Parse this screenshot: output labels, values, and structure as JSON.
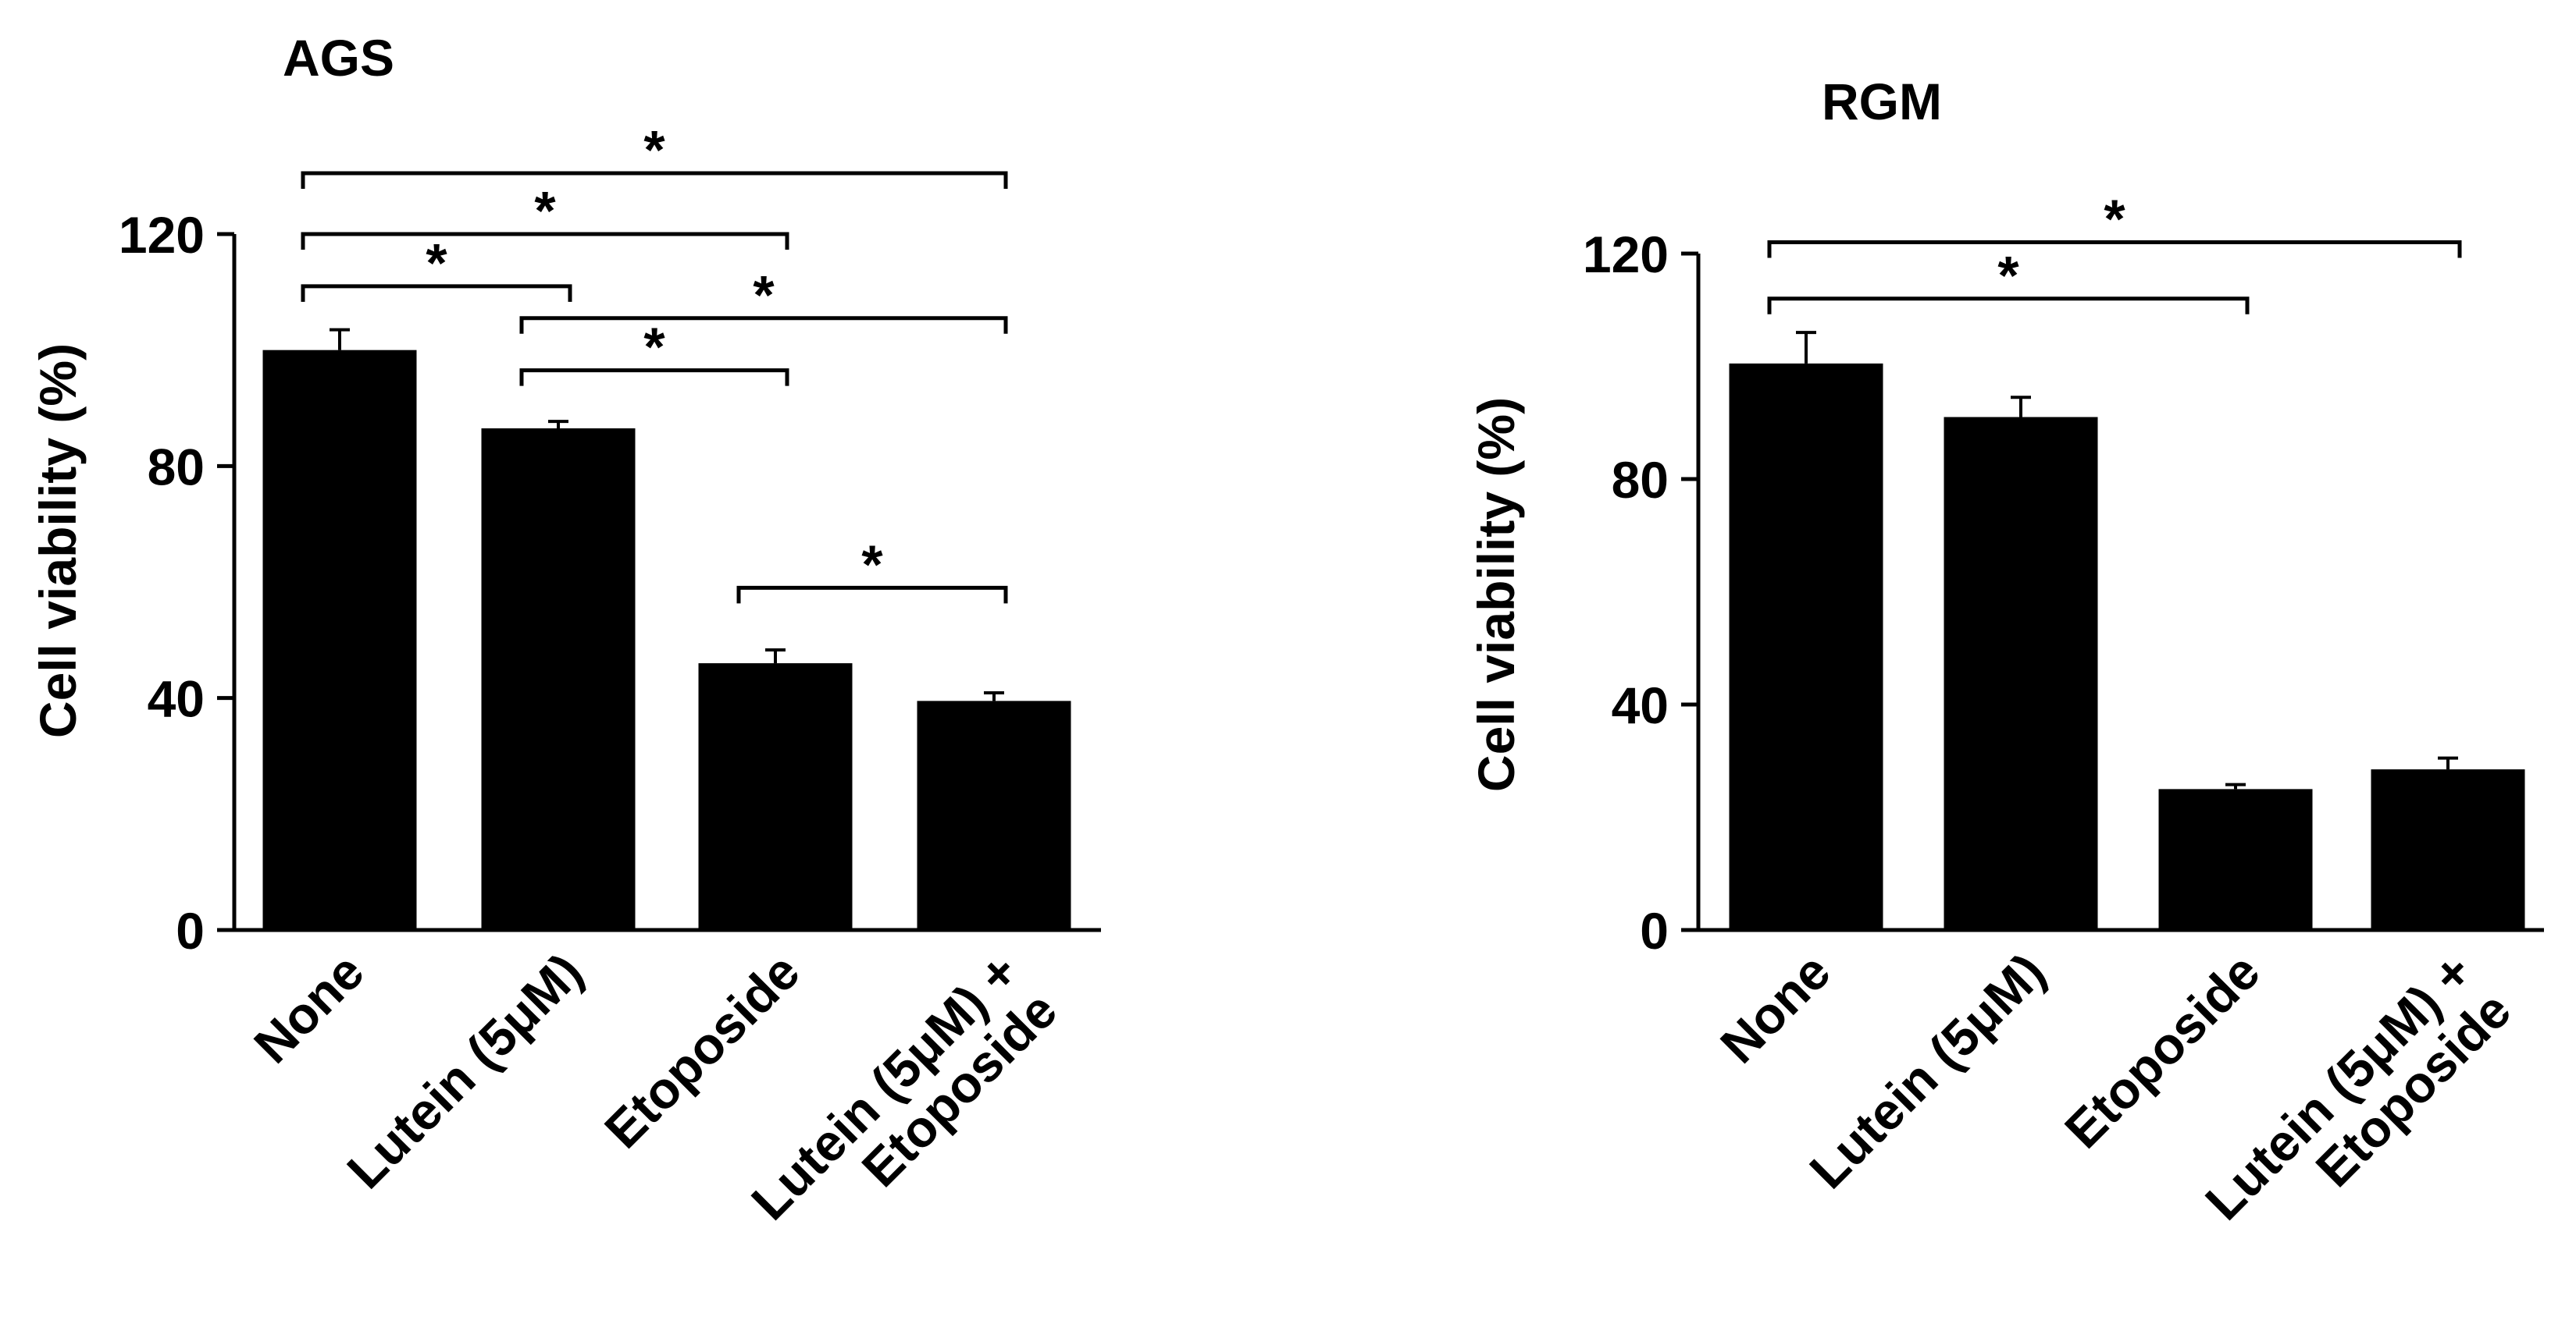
{
  "chart_data": [
    {
      "type": "bar",
      "title": "AGS",
      "ylabel": "Cell viability (%)",
      "xlabel": "",
      "ylim": [
        0,
        120
      ],
      "yticks": [
        "0",
        "40",
        "80",
        "120"
      ],
      "categories": [
        "None",
        "Lutein (5μM)",
        "Etoposide",
        "Lutein (5μM) + Etoposide"
      ],
      "category_lines": [
        [
          "None"
        ],
        [
          "Lutein (5μM)"
        ],
        [
          "Etoposide"
        ],
        [
          "Lutein (5μM) +",
          "Etoposide"
        ]
      ],
      "values": [
        100,
        86.5,
        46,
        39.5
      ],
      "errors": [
        3.5,
        1.2,
        2.3,
        1.4
      ],
      "bar_color": "#000000",
      "significance": [
        {
          "from": 0,
          "to": 3,
          "label": "*",
          "y": 130.5
        },
        {
          "from": 0,
          "to": 2,
          "label": "*",
          "y": 120
        },
        {
          "from": 0,
          "to": 1,
          "label": "*",
          "y": 111
        },
        {
          "from": 1,
          "to": 3,
          "label": "*",
          "y": 105.5
        },
        {
          "from": 1,
          "to": 2,
          "label": "*",
          "y": 96.5
        },
        {
          "from": 2,
          "to": 3,
          "label": "*",
          "y": 59
        }
      ]
    },
    {
      "type": "bar",
      "title": "RGM",
      "ylabel": "Cell viability (%)",
      "xlabel": "",
      "ylim": [
        0,
        120
      ],
      "yticks": [
        "0",
        "40",
        "80",
        "120"
      ],
      "categories": [
        "None",
        "Lutein (5μM)",
        "Etoposide",
        "Lutein (5μM) + Etoposide"
      ],
      "category_lines": [
        [
          "None"
        ],
        [
          "Lutein (5μM)"
        ],
        [
          "Etoposide"
        ],
        [
          "Lutein (5μM) +",
          "Etoposide"
        ]
      ],
      "values": [
        100.5,
        91,
        25,
        28.5
      ],
      "errors": [
        5.5,
        3.5,
        0.8,
        2
      ],
      "bar_color": "#000000",
      "significance": [
        {
          "from": 0,
          "to": 3,
          "label": "*",
          "y": 122
        },
        {
          "from": 0,
          "to": 2,
          "label": "*",
          "y": 112
        }
      ]
    }
  ]
}
